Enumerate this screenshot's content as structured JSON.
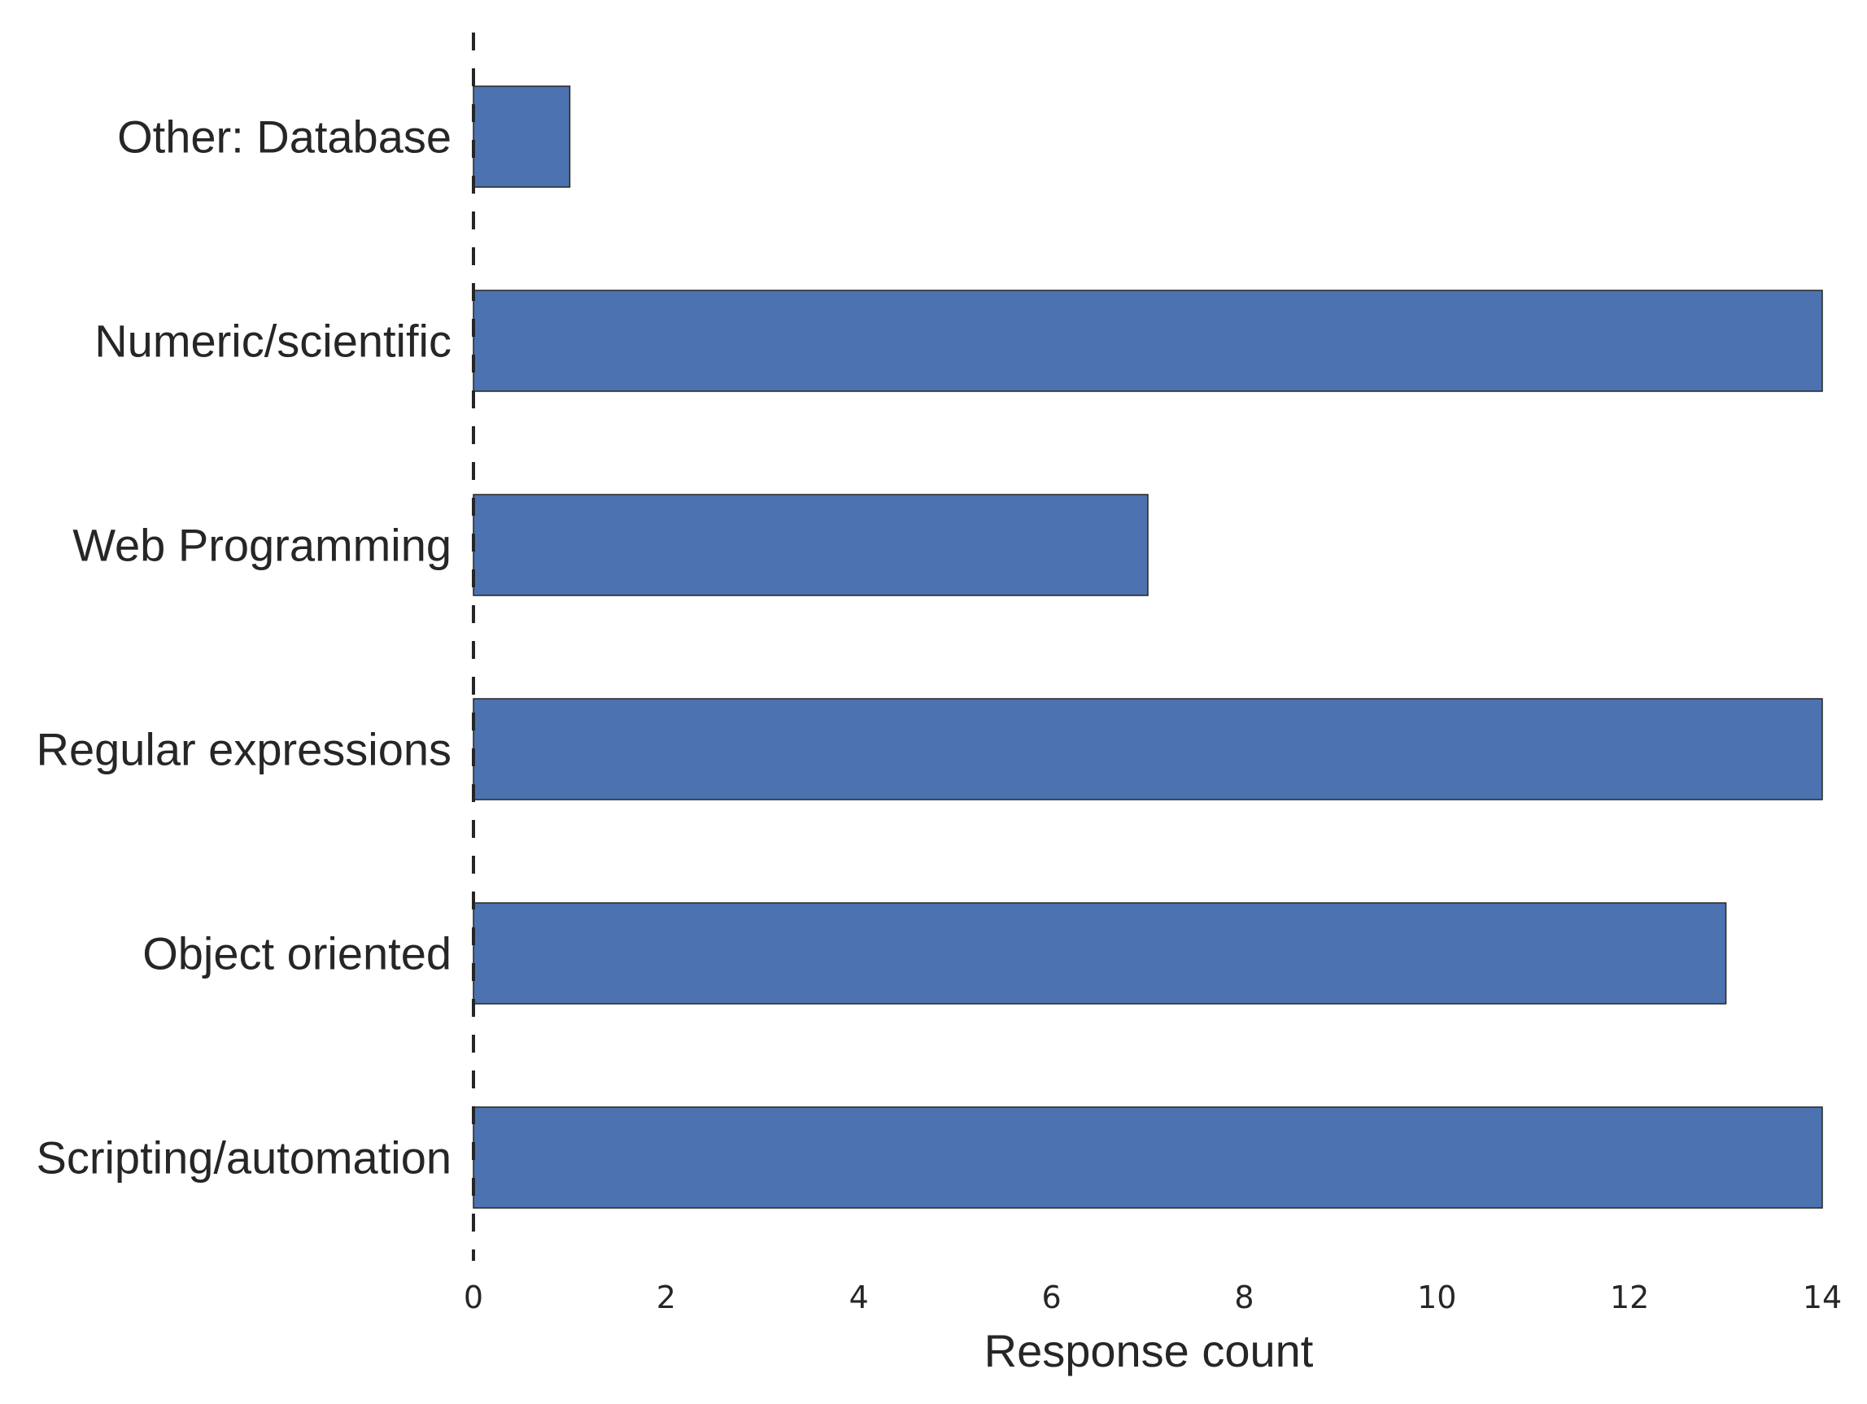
{
  "chart_data": {
    "type": "bar",
    "orientation": "horizontal",
    "categories": [
      "Other: Database",
      "Numeric/scientific",
      "Web Programming",
      "Regular expressions",
      "Object oriented",
      "Scripting/automation"
    ],
    "values": [
      1,
      14,
      7,
      14,
      13,
      14
    ],
    "xlabel": "Response count",
    "ylabel": "",
    "xlim": [
      0,
      14
    ],
    "xticks": [
      "0",
      "2",
      "4",
      "6",
      "8",
      "10",
      "12",
      "14"
    ],
    "grid": false,
    "legend": "none",
    "bar_color": "#4c72b0",
    "bar_edge_color": "#262626",
    "zero_line_style": "dashed"
  }
}
